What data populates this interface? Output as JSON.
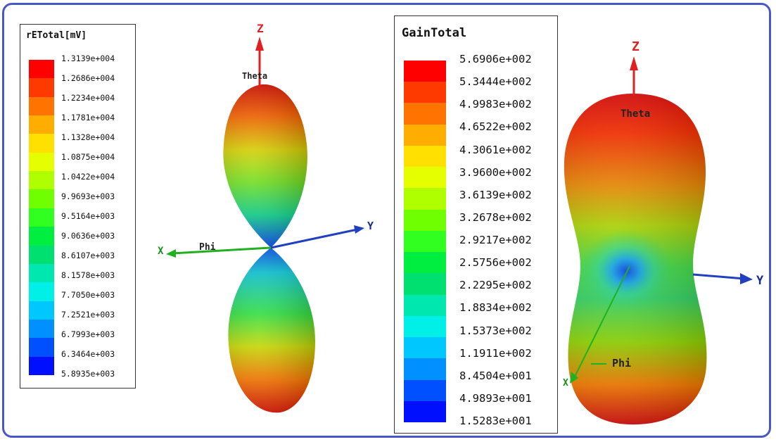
{
  "legend_left": {
    "title": "rETotal[mV]",
    "ticks": [
      "1.3139e+004",
      "1.2686e+004",
      "1.2234e+004",
      "1.1781e+004",
      "1.1328e+004",
      "1.0875e+004",
      "1.0422e+004",
      "9.9693e+003",
      "9.5164e+003",
      "9.0636e+003",
      "8.6107e+003",
      "8.1578e+003",
      "7.7050e+003",
      "7.2521e+003",
      "6.7993e+003",
      "6.3464e+003",
      "5.8935e+003"
    ]
  },
  "legend_right": {
    "title": "GainTotal",
    "ticks": [
      "5.6906e+002",
      "5.3444e+002",
      "4.9983e+002",
      "4.6522e+002",
      "4.3061e+002",
      "3.9600e+002",
      "3.6139e+002",
      "3.2678e+002",
      "2.9217e+002",
      "2.5756e+002",
      "2.2295e+002",
      "1.8834e+002",
      "1.5373e+002",
      "1.1911e+002",
      "8.4504e+001",
      "4.9893e+001",
      "1.5283e+001"
    ]
  },
  "colormap": [
    "#ff0000",
    "#ff3a00",
    "#ff7400",
    "#ffae00",
    "#ffe000",
    "#e6ff00",
    "#b0ff00",
    "#70ff00",
    "#30ff20",
    "#00ee40",
    "#00e070",
    "#00e8b0",
    "#00f0e8",
    "#00c8ff",
    "#0090ff",
    "#0050ff",
    "#0010ff"
  ],
  "plot_left": {
    "z_label": "Z",
    "theta_label": "Theta",
    "x_label": "X",
    "phi_label": "Phi",
    "y_label": "Y"
  },
  "plot_right": {
    "z_label": "Z",
    "theta_label": "Theta",
    "x_label": "X",
    "phi_label": "Phi",
    "y_label": "Y"
  },
  "colors": {
    "frame": "#4a57c8",
    "z_axis": "#e02020",
    "y_axis": "#2040c0",
    "x_axis": "#20b020"
  }
}
